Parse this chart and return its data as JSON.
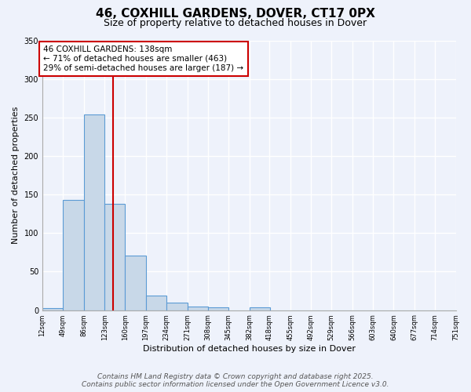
{
  "title": "46, COXHILL GARDENS, DOVER, CT17 0PX",
  "subtitle": "Size of property relative to detached houses in Dover",
  "xlabel": "Distribution of detached houses by size in Dover",
  "ylabel": "Number of detached properties",
  "bar_edges": [
    12,
    49,
    86,
    123,
    160,
    197,
    234,
    271,
    308,
    345,
    382,
    418,
    455,
    492,
    529,
    566,
    603,
    640,
    677,
    714,
    751
  ],
  "bar_values": [
    3,
    143,
    254,
    138,
    71,
    19,
    10,
    5,
    4,
    0,
    4,
    0,
    0,
    0,
    0,
    0,
    0,
    0,
    0,
    0,
    1
  ],
  "tick_labels": [
    "12sqm",
    "49sqm",
    "86sqm",
    "123sqm",
    "160sqm",
    "197sqm",
    "234sqm",
    "271sqm",
    "308sqm",
    "345sqm",
    "382sqm",
    "418sqm",
    "455sqm",
    "492sqm",
    "529sqm",
    "566sqm",
    "603sqm",
    "640sqm",
    "677sqm",
    "714sqm",
    "751sqm"
  ],
  "bar_color": "#c8d8e8",
  "bar_edge_color": "#5b9bd5",
  "property_line_x": 138,
  "annotation_line1": "46 COXHILL GARDENS: 138sqm",
  "annotation_line2": "← 71% of detached houses are smaller (463)",
  "annotation_line3": "29% of semi-detached houses are larger (187) →",
  "annotation_box_color": "#ffffff",
  "annotation_box_edge_color": "#cc0000",
  "property_line_color": "#cc0000",
  "ylim": [
    0,
    350
  ],
  "yticks": [
    0,
    50,
    100,
    150,
    200,
    250,
    300,
    350
  ],
  "background_color": "#eef2fb",
  "grid_color": "#ffffff",
  "footer_line1": "Contains HM Land Registry data © Crown copyright and database right 2025.",
  "footer_line2": "Contains public sector information licensed under the Open Government Licence v3.0.",
  "title_fontsize": 11,
  "subtitle_fontsize": 9,
  "annotation_fontsize": 7.5,
  "footer_fontsize": 6.5,
  "axis_label_fontsize": 8,
  "tick_fontsize": 6
}
